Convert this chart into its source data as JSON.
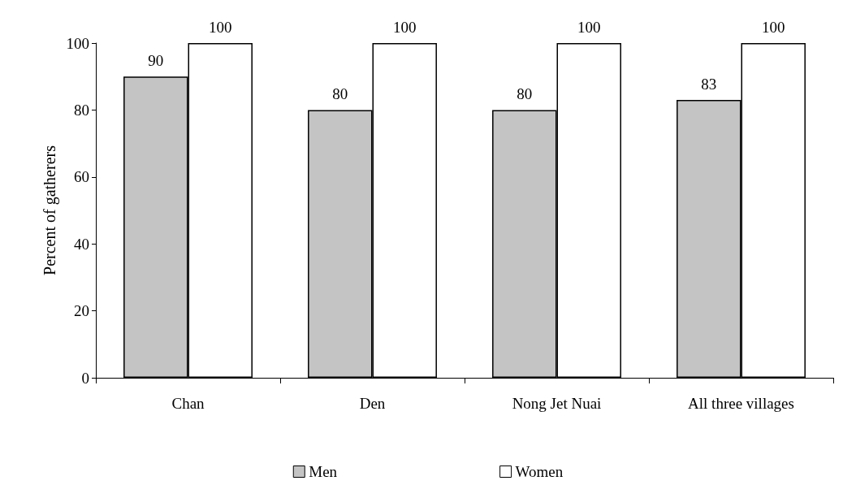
{
  "chart_data": {
    "type": "bar",
    "ylabel": "Percent of gatherers",
    "categories": [
      "Chan",
      "Den",
      "Nong Jet Nuai",
      "All three villages"
    ],
    "series": [
      {
        "name": "Men",
        "color": "#c4c4c4",
        "values": [
          90,
          80,
          80,
          83
        ]
      },
      {
        "name": "Women",
        "color": "#ffffff",
        "values": [
          100,
          100,
          100,
          100
        ]
      }
    ],
    "ylim": [
      0,
      100
    ],
    "yticks": [
      0,
      20,
      40,
      60,
      80,
      100
    ],
    "grid": false,
    "legend": "bottom",
    "data_labels": true
  }
}
